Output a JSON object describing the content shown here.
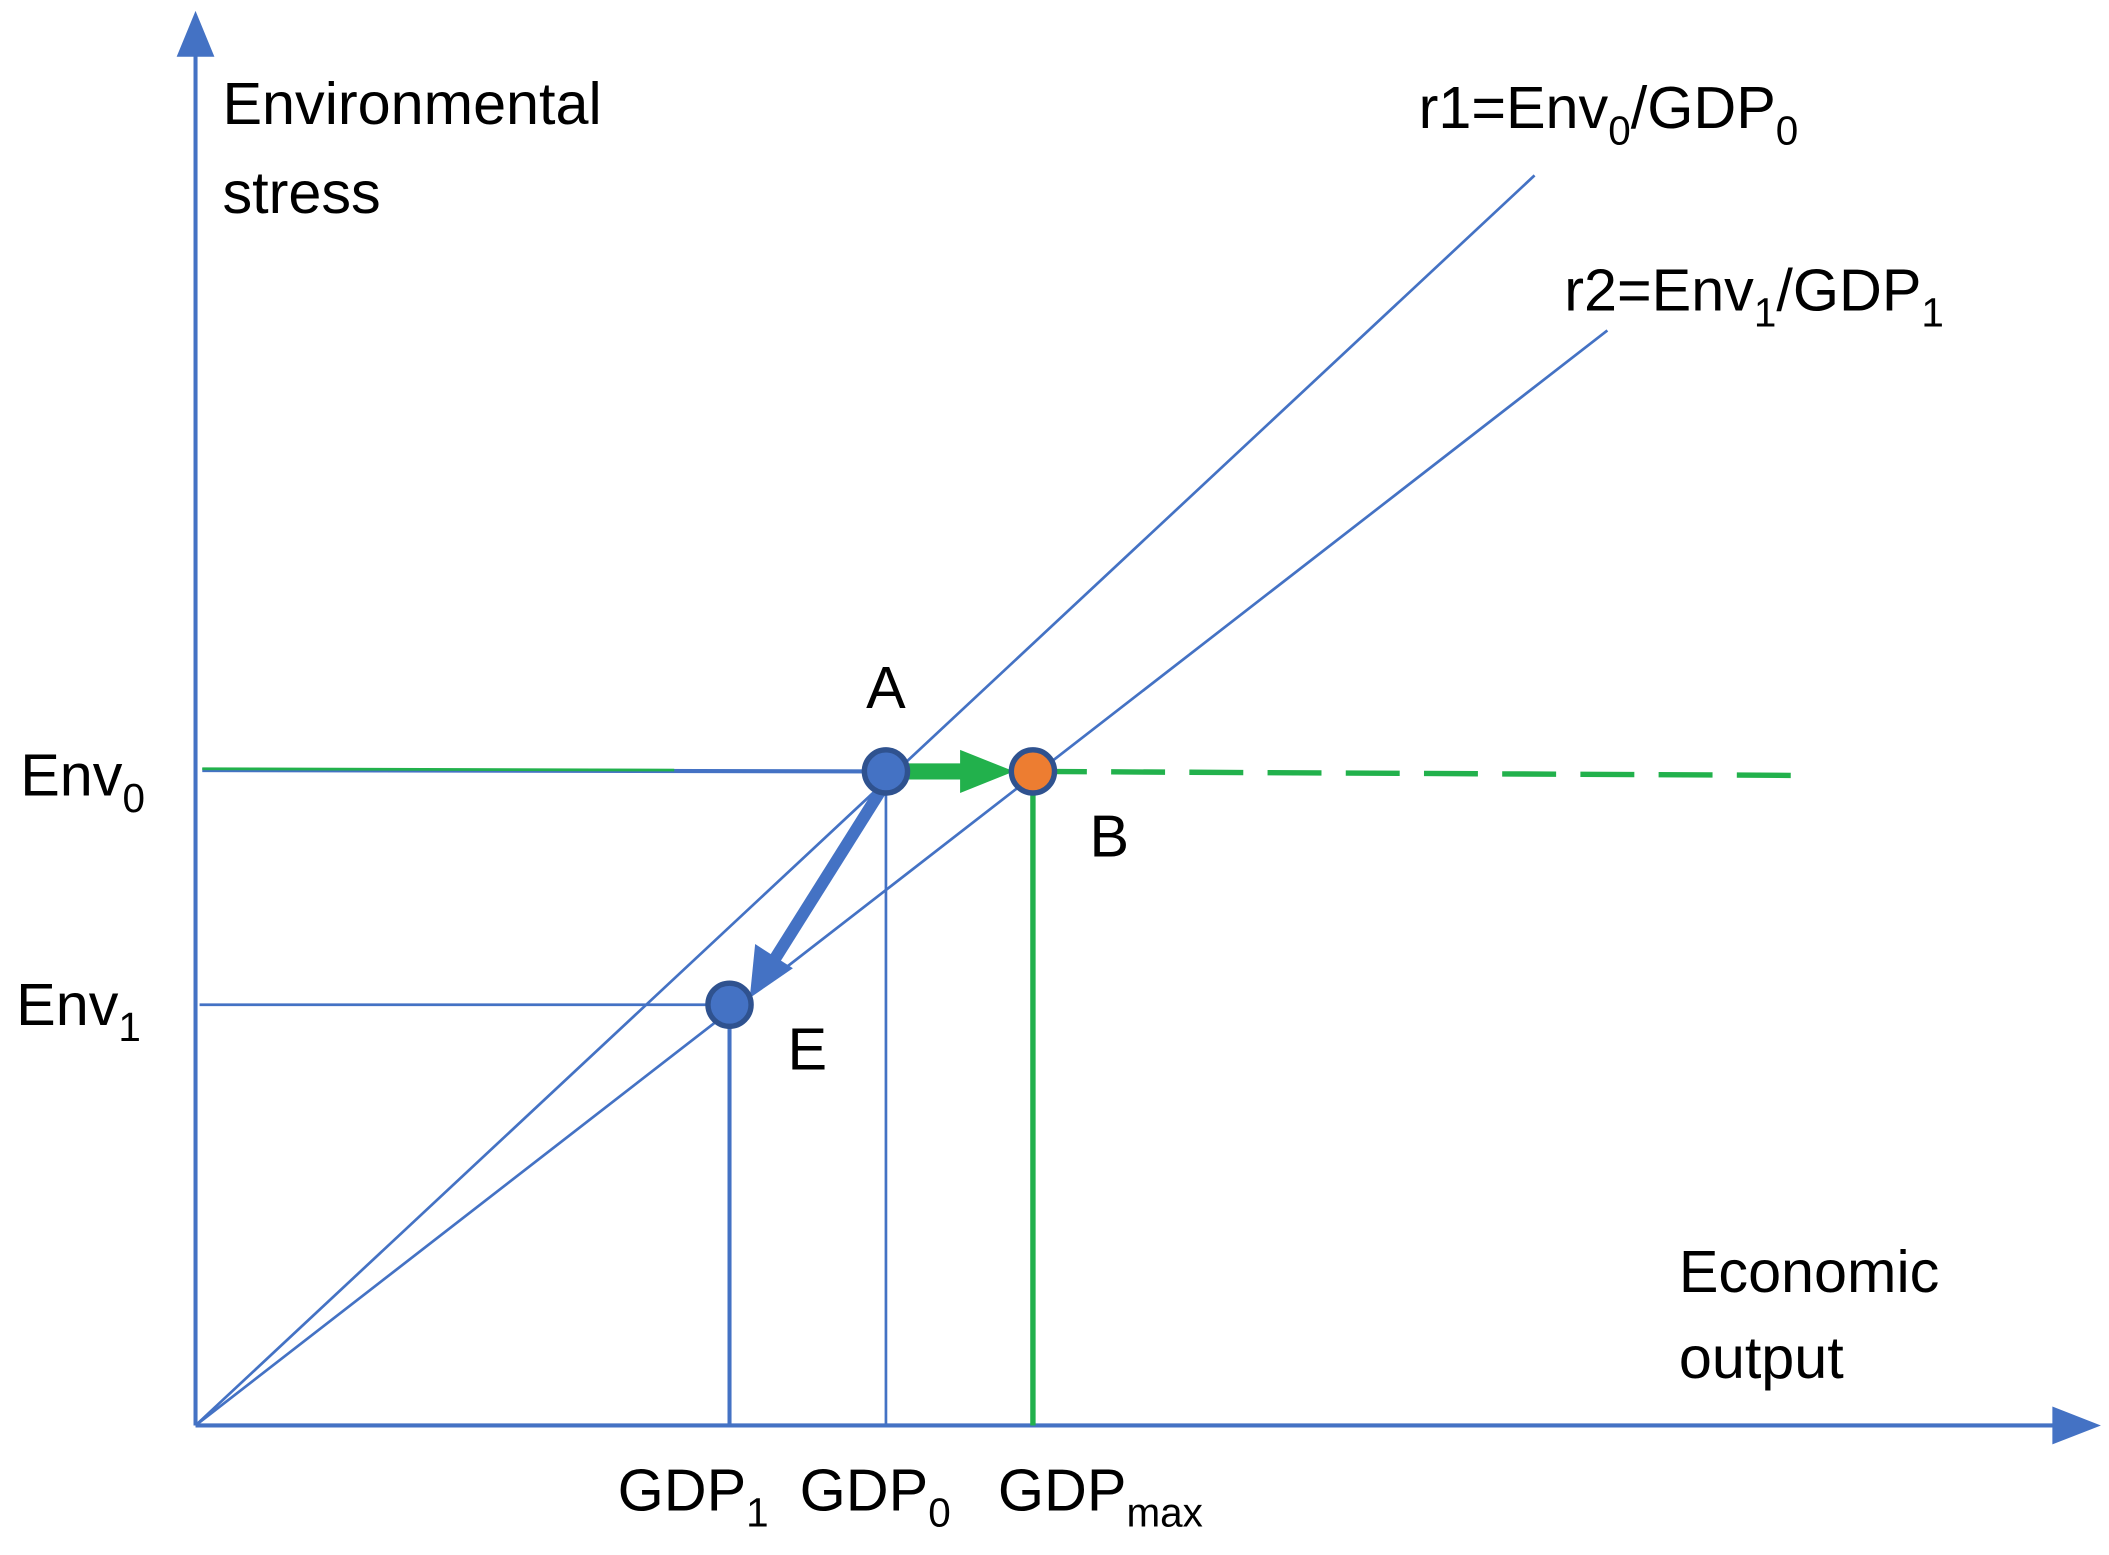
{
  "axes": {
    "y_label": [
      "Environmental",
      "stress"
    ],
    "x_label": [
      "Economic",
      "output"
    ]
  },
  "lines": {
    "r1": [
      "r1=Env",
      "0",
      "/GDP",
      "0"
    ],
    "r2": [
      "r2=Env",
      "1",
      "/GDP",
      "1"
    ]
  },
  "points": {
    "A": "A",
    "B": "B",
    "E": "E"
  },
  "y_ticks": [
    [
      "Env",
      "0"
    ],
    [
      "Env",
      "1"
    ]
  ],
  "x_ticks": [
    [
      "GDP",
      "1"
    ],
    [
      "GDP",
      "0"
    ],
    [
      "GDP",
      "max"
    ]
  ]
}
